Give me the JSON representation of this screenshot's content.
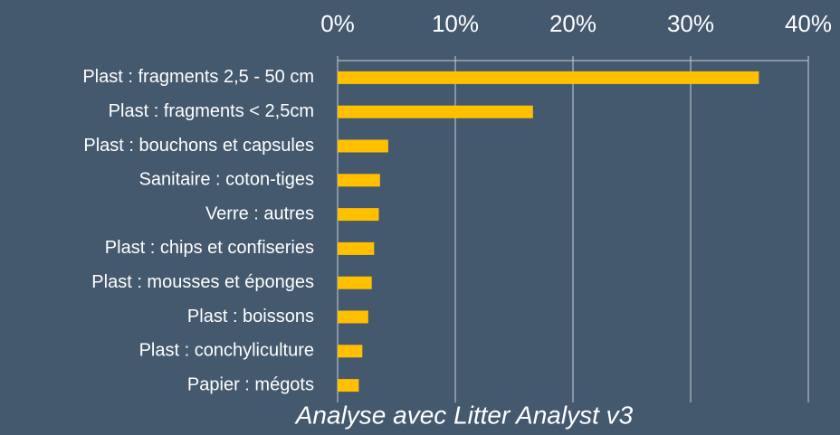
{
  "chart_data": {
    "type": "barh",
    "categories": [
      "Plast : fragments 2,5 - 50 cm",
      "Plast : fragments < 2,5cm",
      "Plast : bouchons et capsules",
      "Sanitaire : coton-tiges",
      "Verre : autres",
      "Plast : chips et confiseries",
      "Plast : mousses et éponges",
      "Plast : boissons",
      "Plast : conchyliculture",
      "Papier : mégots"
    ],
    "values": [
      35.8,
      16.6,
      4.3,
      3.6,
      3.5,
      3.1,
      2.9,
      2.6,
      2.1,
      1.8
    ],
    "color": "#ffc000",
    "xlim": [
      0,
      40
    ],
    "xticks": [
      {
        "value": 0,
        "label": "0%"
      },
      {
        "value": 10,
        "label": "10%"
      },
      {
        "value": 20,
        "label": "20%"
      },
      {
        "value": 30,
        "label": "30%"
      },
      {
        "value": 40,
        "label": "40%"
      }
    ],
    "grid": true,
    "annotation": "Analyse avec Litter Analyst v3"
  }
}
